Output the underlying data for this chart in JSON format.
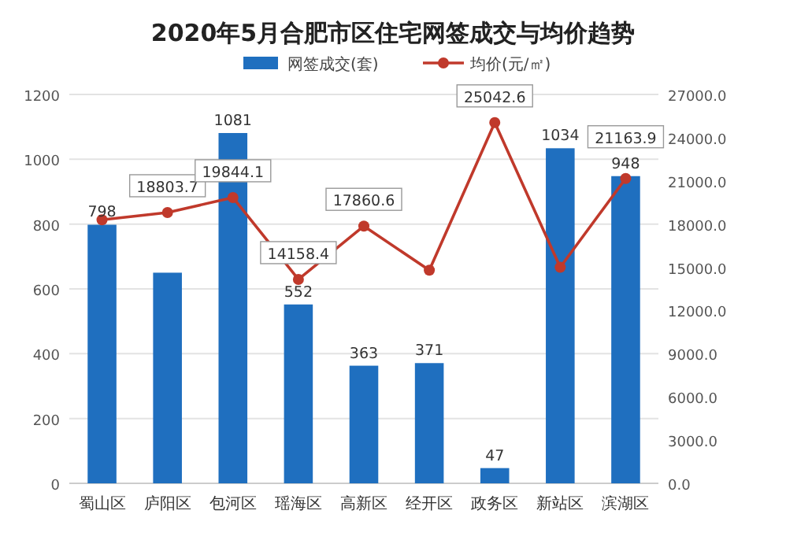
{
  "chart_data": {
    "type": "bar",
    "title": "2020年5月合肥市区住宅网签成交与均价趋势",
    "categories": [
      "蜀山区",
      "庐阳区",
      "包河区",
      "瑶海区",
      "高新区",
      "经开区",
      "政务区",
      "新站区",
      "滨湖区"
    ],
    "series": [
      {
        "name": "网签成交(套)",
        "color": "#1f6fbf",
        "values": [
          798,
          650,
          1081,
          552,
          363,
          371,
          47,
          1034,
          948
        ],
        "value_labels": [
          "798",
          null,
          "1081",
          "552",
          "363",
          "371",
          "47",
          "1034",
          "948"
        ]
      },
      {
        "name": "均价(元/㎡)",
        "type": "line",
        "axis": "y2",
        "color": "#c0392b",
        "marker": "circle",
        "values": [
          18300,
          18803.7,
          19844.1,
          14158.4,
          17860.6,
          14800,
          25042.6,
          15000,
          21163.9
        ],
        "value_labels": [
          null,
          "18803.7",
          "19844.1",
          "14158.4",
          "17860.6",
          null,
          "25042.6",
          null,
          "21163.9"
        ]
      }
    ],
    "ylim": [
      0,
      1200
    ],
    "yticks": [
      0,
      200,
      400,
      600,
      800,
      1000,
      1200
    ],
    "y2lim": [
      0,
      27000
    ],
    "y2ticks": [
      {
        "value": 0,
        "label": "0.0"
      },
      {
        "value": 3000,
        "label": "3000.0"
      },
      {
        "value": 6000,
        "label": "6000.0"
      },
      {
        "value": 9000,
        "label": "9000.0"
      },
      {
        "value": 12000,
        "label": "12000.0"
      },
      {
        "value": 15000,
        "label": "15000.0"
      },
      {
        "value": 18000,
        "label": "18000.0"
      },
      {
        "value": 21000,
        "label": "21000.0"
      },
      {
        "value": 24000,
        "label": "24000.0"
      },
      {
        "value": 27000,
        "label": "27000.0"
      }
    ],
    "grid": "y",
    "legend": "top"
  }
}
